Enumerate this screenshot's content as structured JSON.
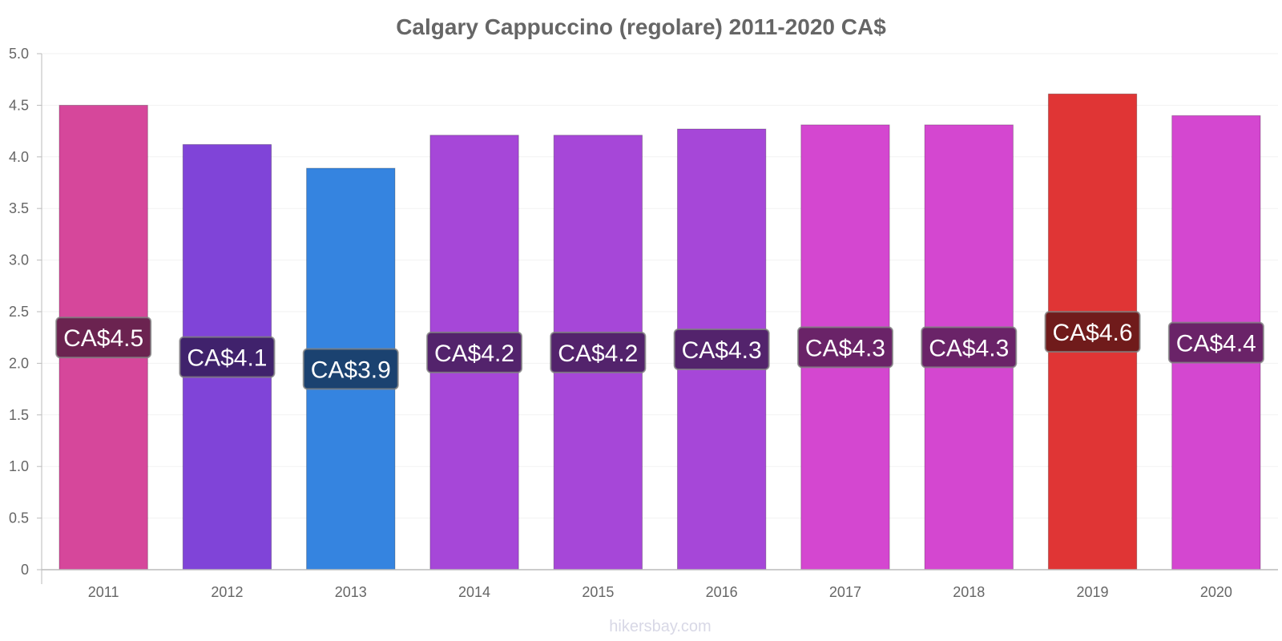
{
  "chart_data": {
    "type": "bar",
    "title": "Calgary Cappuccino (regolare) 2011-2020 CA$",
    "xlabel": "",
    "ylabel": "",
    "categories": [
      "2011",
      "2012",
      "2013",
      "2014",
      "2015",
      "2016",
      "2017",
      "2018",
      "2019",
      "2020"
    ],
    "values": [
      4.5,
      4.12,
      3.89,
      4.21,
      4.21,
      4.27,
      4.31,
      4.31,
      4.61,
      4.4
    ],
    "data_labels": [
      "CA$4.5",
      "CA$4.1",
      "CA$3.9",
      "CA$4.2",
      "CA$4.2",
      "CA$4.3",
      "CA$4.3",
      "CA$4.3",
      "CA$4.6",
      "CA$4.4"
    ],
    "bar_colors": [
      "#d6479b",
      "#8044d8",
      "#3584e0",
      "#a647d8",
      "#a647d8",
      "#a647d8",
      "#d447d0",
      "#d447d0",
      "#e03535",
      "#d447d0"
    ],
    "label_bg_colors": [
      "#6b2350",
      "#40226c",
      "#1b4270",
      "#53236c",
      "#53236c",
      "#53236c",
      "#6a2368",
      "#6a2368",
      "#701b1b",
      "#6a2368"
    ],
    "yticks": [
      "0",
      "0.5",
      "1.0",
      "1.5",
      "2.0",
      "2.5",
      "3.0",
      "3.5",
      "4.0",
      "4.5",
      "5.0"
    ],
    "ylim": [
      0,
      5
    ],
    "grid": true,
    "legend": "none"
  },
  "footer": {
    "credit": "hikersbay.com"
  }
}
